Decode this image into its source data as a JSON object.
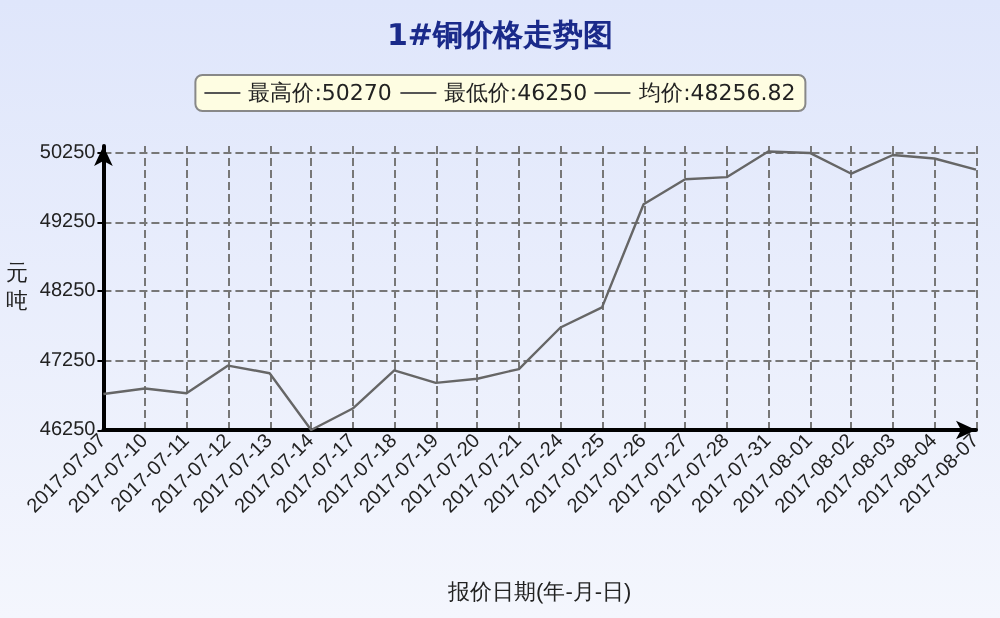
{
  "chart_data": {
    "type": "line",
    "title": "1#铜价格走势图",
    "xlabel": "报价日期(年-月-日)",
    "ylabel": "元吨",
    "annotations": [
      "最高价:50270",
      "最低价:46250",
      "均价:48256.82"
    ],
    "categories": [
      "2017-07-07",
      "2017-07-10",
      "2017-07-11",
      "2017-07-12",
      "2017-07-13",
      "2017-07-14",
      "2017-07-17",
      "2017-07-18",
      "2017-07-19",
      "2017-07-20",
      "2017-07-21",
      "2017-07-24",
      "2017-07-25",
      "2017-07-26",
      "2017-07-27",
      "2017-07-28",
      "2017-07-31",
      "2017-08-01",
      "2017-08-02",
      "2017-08-03",
      "2017-08-04",
      "2017-08-07"
    ],
    "series": [
      {
        "color": "#666666",
        "values": [
          46770,
          46850,
          46780,
          47180,
          47070,
          46250,
          46560,
          47110,
          46930,
          46990,
          47130,
          47730,
          48020,
          49510,
          49870,
          49900,
          50270,
          50250,
          49950,
          50220,
          50170,
          50010
        ]
      }
    ],
    "ylim": [
      46250,
      50350
    ],
    "yticks": [
      46250,
      47250,
      48250,
      49250,
      50250
    ],
    "grid": true,
    "marker": "none",
    "line_style": "solid"
  }
}
